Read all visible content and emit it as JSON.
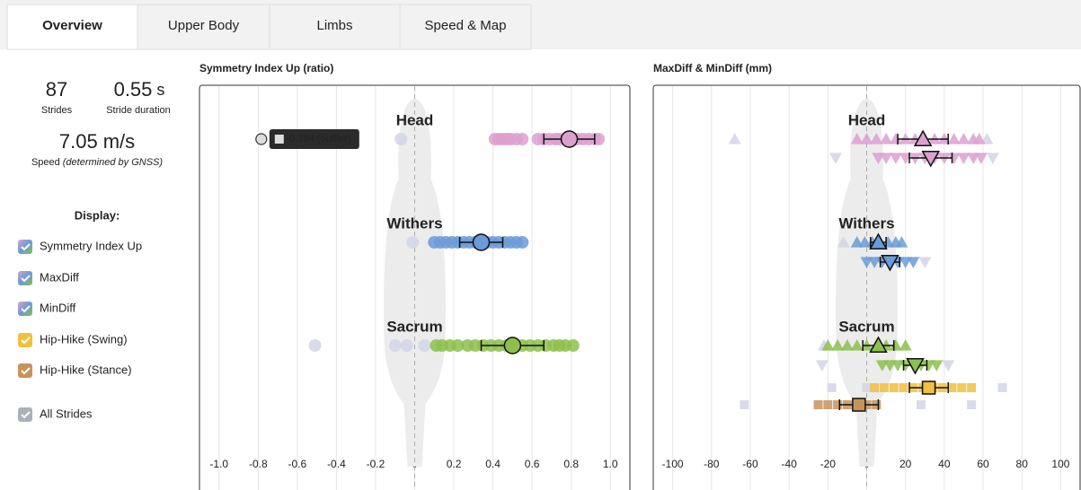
{
  "tabs": {
    "active": 0,
    "active_color": "#d9622b",
    "items": [
      "Overview",
      "Upper Body",
      "Limbs",
      "Speed & Map"
    ]
  },
  "summary": {
    "strides": {
      "value": 87,
      "label": "Strides"
    },
    "stride_duration": {
      "value": 0.55,
      "unit": "s",
      "label": "Stride duration"
    },
    "speed": {
      "value": 7.05,
      "unit": "m/s",
      "label": "Speed",
      "note": "(determined by GNSS)"
    }
  },
  "display": {
    "title": "Display:",
    "items": [
      {
        "label": "Symmetry Index Up",
        "colors": [
          "#dca0cf",
          "#6b9bd8",
          "#8dbf4e"
        ]
      },
      {
        "label": "MaxDiff",
        "colors": [
          "#dca0cf",
          "#6b9bd8",
          "#8dbf4e"
        ]
      },
      {
        "label": "MinDiff",
        "colors": [
          "#dca0cf",
          "#6b9bd8",
          "#8dbf4e"
        ]
      },
      {
        "label": "Hip-Hike (Swing)",
        "colors": [
          "#f0c040"
        ]
      },
      {
        "label": "Hip-Hike (Stance)",
        "colors": [
          "#c8935a"
        ]
      },
      {
        "label": "All Strides",
        "colors": [
          "#a9b1bd"
        ]
      }
    ]
  },
  "chart_data": [
    {
      "type": "strip",
      "title": "Symmetry Index Up (ratio)",
      "xlim": [
        -1.1,
        1.1
      ],
      "xticks": [
        {
          "value": -1,
          "label": "-1.0"
        },
        -0.8,
        -0.6,
        -0.4,
        -0.2,
        0,
        0.2,
        0.4,
        0.6,
        0.8,
        {
          "value": 1,
          "label": "1.0"
        }
      ],
      "grid": true,
      "others_color": "#d5d7e8",
      "tooltip": "-0.784 (outlier)",
      "rows": [
        {
          "label": "Head",
          "marker": "circle",
          "color": "#dca0cf",
          "values": [
            0.41,
            0.43,
            0.45,
            0.47,
            0.49,
            0.52,
            0.55,
            0.63,
            0.66,
            0.69,
            0.72,
            0.74,
            0.77,
            0.8,
            0.83,
            0.86,
            0.89,
            0.92,
            0.94
          ],
          "mean": 0.79,
          "sd": 0.13,
          "others": [
            -0.07
          ],
          "outliers": [
            -0.784
          ]
        },
        {
          "label": "Withers",
          "marker": "circle",
          "color": "#6b9bd8",
          "values": [
            0.1,
            0.13,
            0.16,
            0.19,
            0.22,
            0.25,
            0.28,
            0.31,
            0.34,
            0.37,
            0.4,
            0.43,
            0.46,
            0.49,
            0.52,
            0.55
          ],
          "mean": 0.34,
          "sd": 0.11,
          "others": [
            -0.01
          ]
        },
        {
          "label": "Sacrum",
          "marker": "circle",
          "color": "#8dbf4e",
          "values": [
            0.11,
            0.14,
            0.18,
            0.22,
            0.27,
            0.31,
            0.35,
            0.39,
            0.43,
            0.47,
            0.51,
            0.55,
            0.59,
            0.63,
            0.67,
            0.71,
            0.74,
            0.77,
            0.81
          ],
          "mean": 0.5,
          "sd": 0.16,
          "others": [
            -0.51,
            -0.1,
            -0.04,
            0.05
          ]
        }
      ]
    },
    {
      "type": "strip",
      "title": "MaxDiff & MinDiff (mm)",
      "xlim": [
        -110,
        110
      ],
      "xticks": [
        -100,
        -80,
        -60,
        -40,
        -20,
        0,
        20,
        40,
        60,
        80,
        100
      ],
      "grid": true,
      "others_color": "#d5d7e8",
      "rows": [
        {
          "label": "Head",
          "marker": "triangle-up",
          "color": "#dca0cf",
          "values": [
            -5,
            0,
            5,
            10,
            15,
            20,
            25,
            30,
            35,
            40,
            45,
            50,
            55,
            58
          ],
          "mean": 29,
          "sd": 13,
          "others": [
            -68,
            62
          ]
        },
        {
          "marker": "triangle-down",
          "color": "#dca0cf",
          "values": [
            6,
            10,
            15,
            20,
            25,
            30,
            35,
            40,
            45,
            50,
            55,
            59
          ],
          "mean": 33,
          "sd": 11,
          "others": [
            -16,
            65
          ]
        },
        {
          "label": "Withers",
          "marker": "triangle-up",
          "color": "#6b9bd8",
          "values": [
            -5,
            -1,
            3,
            7,
            11,
            15,
            18
          ],
          "mean": 6,
          "sd": 4,
          "others": [
            -12
          ]
        },
        {
          "marker": "triangle-down",
          "color": "#6b9bd8",
          "values": [
            0,
            4,
            8,
            12,
            16,
            20,
            24
          ],
          "mean": 12,
          "sd": 5,
          "others": [
            30
          ]
        },
        {
          "label": "Sacrum",
          "marker": "triangle-up",
          "color": "#8dbf4e",
          "values": [
            -20,
            -15,
            -10,
            -5,
            0,
            5,
            10,
            15,
            20
          ],
          "mean": 6,
          "sd": 8,
          "others": [
            -22
          ]
        },
        {
          "marker": "triangle-down",
          "color": "#8dbf4e",
          "values": [
            8,
            12,
            16,
            20,
            24,
            28,
            32,
            36
          ],
          "mean": 25,
          "sd": 6,
          "others": [
            -23,
            42
          ]
        },
        {
          "marker": "square",
          "color": "#f0c040",
          "values": [
            4,
            9,
            14,
            19,
            24,
            29,
            34,
            39,
            44,
            49,
            54
          ],
          "mean": 32,
          "sd": 10,
          "others": [
            -18,
            0,
            70
          ]
        },
        {
          "marker": "square",
          "color": "#c8935a",
          "values": [
            -25,
            -20,
            -15,
            -10,
            -5,
            0,
            5
          ],
          "mean": -4,
          "sd": 10,
          "others": [
            -63,
            28,
            54
          ]
        }
      ]
    }
  ]
}
